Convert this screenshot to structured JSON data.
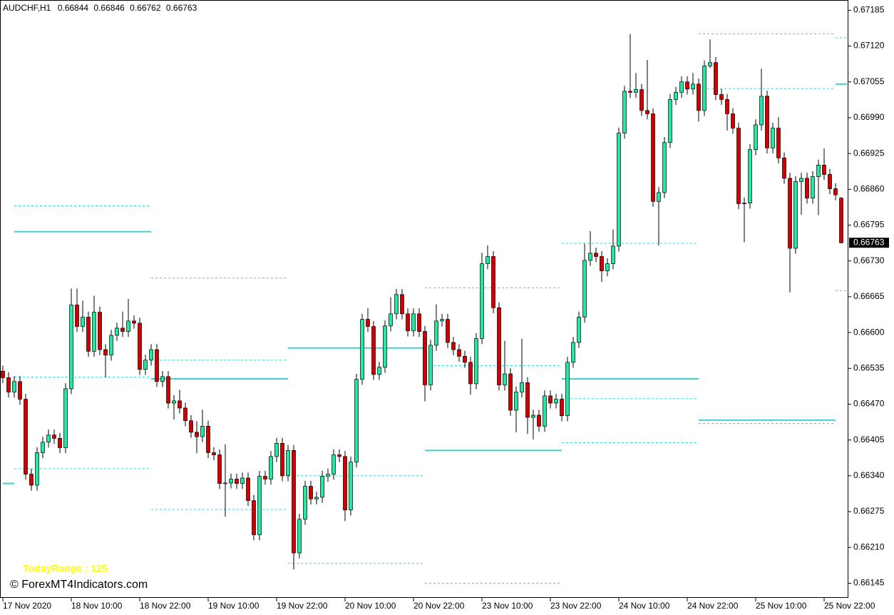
{
  "chart_data": {
    "type": "candlestick",
    "symbol": "AUDCHF,H1",
    "categories": [
      "17 Nov 2020",
      null,
      null,
      null,
      null,
      null,
      null,
      null,
      null,
      null,
      null,
      null,
      "18 Nov 10:00",
      null,
      null,
      null,
      null,
      null,
      null,
      null,
      null,
      null,
      null,
      null,
      "18 Nov 22:00",
      null,
      null,
      null,
      null,
      null,
      null,
      null,
      null,
      null,
      null,
      null,
      "19 Nov 10:00",
      null,
      null,
      null,
      null,
      null,
      null,
      null,
      null,
      null,
      null,
      null,
      "19 Nov 22:00",
      null,
      null,
      null,
      null,
      null,
      null,
      null,
      null,
      null,
      null,
      null,
      "20 Nov 10:00",
      null,
      null,
      null,
      null,
      null,
      null,
      null,
      null,
      null,
      null,
      null,
      "20 Nov 22:00",
      null,
      null,
      null,
      null,
      null,
      null,
      null,
      null,
      null,
      null,
      null,
      "23 Nov 10:00",
      null,
      null,
      null,
      null,
      null,
      null,
      null,
      null,
      null,
      null,
      null,
      "23 Nov 22:00",
      null,
      null,
      null,
      null,
      null,
      null,
      null,
      null,
      null,
      null,
      null,
      "24 Nov 10:00",
      null,
      null,
      null,
      null,
      null,
      null,
      null,
      null,
      null,
      null,
      null,
      "24 Nov 22:00",
      null,
      null,
      null,
      null,
      null,
      null,
      null,
      null,
      null,
      null,
      null,
      "25 Nov 10:00",
      null,
      null,
      null,
      null,
      null,
      null,
      null,
      null,
      null,
      null,
      null,
      "25 Nov 22:00",
      null,
      null,
      null
    ],
    "open": [
      0.6653,
      0.66518,
      0.66492,
      0.66511,
      0.66479,
      0.66343,
      0.66323,
      0.66382,
      0.66401,
      0.66414,
      0.66408,
      0.66391,
      0.66498,
      0.6665,
      0.66611,
      0.66628,
      0.66566,
      0.66637,
      0.66569,
      0.66559,
      0.66595,
      0.66608,
      0.66602,
      0.66621,
      0.66617,
      0.66533,
      0.6655,
      0.66569,
      0.66511,
      0.6652,
      0.66472,
      0.66476,
      0.66463,
      0.6644,
      0.66419,
      0.66411,
      0.6643,
      0.66382,
      0.66378,
      0.66326,
      0.66327,
      0.66334,
      0.66326,
      0.66336,
      0.66295,
      0.66233,
      0.66339,
      0.66334,
      0.66375,
      0.66399,
      0.6634,
      0.66386,
      0.662,
      0.66261,
      0.66321,
      0.66298,
      0.66301,
      0.66339,
      0.66343,
      0.66378,
      0.66375,
      0.66278,
      0.66365,
      0.66515,
      0.66624,
      0.66611,
      0.66524,
      0.66537,
      0.66612,
      0.66634,
      0.66669,
      0.66634,
      0.66603,
      0.66634,
      0.66602,
      0.66505,
      0.66577,
      0.66621,
      0.66624,
      0.66582,
      0.66569,
      0.66557,
      0.66546,
      0.66507,
      0.66589,
      0.66725,
      0.66738,
      0.66645,
      0.66505,
      0.66525,
      0.66459,
      0.66492,
      0.66509,
      0.66446,
      0.6645,
      0.6643,
      0.66485,
      0.66472,
      0.66479,
      0.66449,
      0.66546,
      0.66582,
      0.66628,
      0.66731,
      0.66744,
      0.66738,
      0.66712,
      0.66725,
      0.66757,
      0.66962,
      0.67038,
      0.67036,
      0.67041,
      0.67003,
      0.66997,
      0.66838,
      0.66854,
      0.66945,
      0.67023,
      0.67036,
      0.67055,
      0.67042,
      0.67051,
      0.67003,
      0.67084,
      0.6709,
      0.67032,
      0.67023,
      0.66997,
      0.66971,
      0.66834,
      0.66835,
      0.66932,
      0.66977,
      0.67029,
      0.66935,
      0.66971,
      0.66917,
      0.6688,
      0.66753,
      0.66874,
      0.6688,
      0.66844,
      0.66883,
      0.66904,
      0.66887,
      0.66861,
      0.66844
    ],
    "high": [
      0.6654,
      0.66528,
      0.66521,
      0.66521,
      0.66489,
      0.66353,
      0.66392,
      0.66411,
      0.66424,
      0.66424,
      0.66418,
      0.66508,
      0.6668,
      0.6668,
      0.66658,
      0.66638,
      0.66667,
      0.66647,
      0.66579,
      0.66605,
      0.66618,
      0.66638,
      0.66661,
      0.66631,
      0.66627,
      0.6656,
      0.66579,
      0.66579,
      0.6653,
      0.6653,
      0.66486,
      0.66496,
      0.66473,
      0.6645,
      0.66439,
      0.6646,
      0.6644,
      0.66392,
      0.66388,
      0.66397,
      0.66344,
      0.66344,
      0.66346,
      0.66346,
      0.66305,
      0.66349,
      0.66349,
      0.66385,
      0.66409,
      0.66409,
      0.66396,
      0.66396,
      0.66271,
      0.66331,
      0.66331,
      0.66311,
      0.66349,
      0.66353,
      0.66388,
      0.66388,
      0.66385,
      0.66375,
      0.66525,
      0.66634,
      0.66644,
      0.66621,
      0.66547,
      0.66622,
      0.66664,
      0.66679,
      0.66679,
      0.66644,
      0.66644,
      0.66644,
      0.66612,
      0.66587,
      0.66651,
      0.66634,
      0.66634,
      0.66592,
      0.66579,
      0.66567,
      0.66556,
      0.66599,
      0.66745,
      0.66758,
      0.66748,
      0.66655,
      0.66585,
      0.66535,
      0.66502,
      0.66589,
      0.66519,
      0.6646,
      0.6646,
      0.66495,
      0.66495,
      0.66489,
      0.66489,
      0.66556,
      0.66592,
      0.66638,
      0.66761,
      0.66784,
      0.66754,
      0.66748,
      0.66735,
      0.66787,
      0.66972,
      0.67048,
      0.67142,
      0.67071,
      0.67051,
      0.67095,
      0.67007,
      0.66864,
      0.66955,
      0.67033,
      0.67046,
      0.67065,
      0.67065,
      0.67071,
      0.67061,
      0.67094,
      0.67132,
      0.671,
      0.67042,
      0.67033,
      0.67007,
      0.66981,
      0.66845,
      0.66942,
      0.66987,
      0.67079,
      0.67039,
      0.66981,
      0.66991,
      0.66927,
      0.6689,
      0.66884,
      0.6689,
      0.6689,
      0.66893,
      0.66914,
      0.66934,
      0.66897,
      0.66871,
      0.66846
    ],
    "low": [
      0.66508,
      0.66482,
      0.66482,
      0.66469,
      0.66333,
      0.66313,
      0.66313,
      0.66372,
      0.66391,
      0.66398,
      0.66381,
      0.66381,
      0.66488,
      0.66601,
      0.66601,
      0.66556,
      0.66556,
      0.66559,
      0.66519,
      0.66549,
      0.66585,
      0.66592,
      0.66592,
      0.66607,
      0.66523,
      0.66523,
      0.6654,
      0.66501,
      0.66501,
      0.66462,
      0.66442,
      0.66453,
      0.6643,
      0.66409,
      0.66381,
      0.66401,
      0.66372,
      0.66368,
      0.66316,
      0.66266,
      0.66317,
      0.66316,
      0.66316,
      0.66285,
      0.66223,
      0.66223,
      0.66324,
      0.66324,
      0.66365,
      0.6633,
      0.6633,
      0.6617,
      0.6619,
      0.66251,
      0.66288,
      0.66288,
      0.66291,
      0.66329,
      0.66333,
      0.66365,
      0.66258,
      0.66268,
      0.66355,
      0.66505,
      0.66601,
      0.66514,
      0.66514,
      0.66527,
      0.66602,
      0.66624,
      0.66624,
      0.66593,
      0.66593,
      0.66592,
      0.66475,
      0.66495,
      0.66567,
      0.66611,
      0.66572,
      0.66559,
      0.66547,
      0.66536,
      0.66487,
      0.66497,
      0.66579,
      0.66715,
      0.66635,
      0.66495,
      0.66495,
      0.66449,
      0.66419,
      0.66482,
      0.66416,
      0.66406,
      0.6642,
      0.6642,
      0.66462,
      0.66462,
      0.66439,
      0.66439,
      0.66536,
      0.66572,
      0.66618,
      0.66721,
      0.66728,
      0.66692,
      0.66702,
      0.66715,
      0.66747,
      0.66952,
      0.67026,
      0.67026,
      0.66993,
      0.66987,
      0.66828,
      0.66758,
      0.66844,
      0.66935,
      0.67013,
      0.67026,
      0.67032,
      0.67032,
      0.66983,
      0.66993,
      0.6708,
      0.67022,
      0.67013,
      0.66967,
      0.66961,
      0.66824,
      0.66764,
      0.66825,
      0.66922,
      0.66967,
      0.66925,
      0.66925,
      0.66907,
      0.6687,
      0.66673,
      0.66743,
      0.66814,
      0.66834,
      0.66834,
      0.66813,
      0.66877,
      0.66851,
      0.6684,
      0.66762
    ],
    "close": [
      0.66518,
      0.66492,
      0.66511,
      0.66479,
      0.66343,
      0.66323,
      0.66382,
      0.66401,
      0.66414,
      0.66408,
      0.66391,
      0.66498,
      0.6665,
      0.66611,
      0.66628,
      0.66566,
      0.66637,
      0.66569,
      0.66559,
      0.66595,
      0.66608,
      0.66602,
      0.66621,
      0.66617,
      0.66533,
      0.6655,
      0.66569,
      0.66511,
      0.6652,
      0.66472,
      0.66476,
      0.66463,
      0.6644,
      0.66419,
      0.66411,
      0.6643,
      0.66382,
      0.66378,
      0.66326,
      0.66327,
      0.66334,
      0.66326,
      0.66336,
      0.66295,
      0.66233,
      0.66339,
      0.66334,
      0.66375,
      0.66399,
      0.6634,
      0.66386,
      0.662,
      0.66261,
      0.66321,
      0.66298,
      0.66301,
      0.66339,
      0.66343,
      0.66378,
      0.66375,
      0.66278,
      0.66365,
      0.66515,
      0.66624,
      0.66611,
      0.66524,
      0.66537,
      0.66612,
      0.66634,
      0.66669,
      0.66634,
      0.66603,
      0.66634,
      0.66602,
      0.66505,
      0.66577,
      0.66621,
      0.66624,
      0.66582,
      0.66569,
      0.66557,
      0.66546,
      0.66507,
      0.66589,
      0.66725,
      0.66738,
      0.66645,
      0.66505,
      0.66525,
      0.66459,
      0.66492,
      0.66509,
      0.66446,
      0.6645,
      0.6643,
      0.66485,
      0.66472,
      0.66479,
      0.66449,
      0.66546,
      0.66582,
      0.66628,
      0.66731,
      0.66744,
      0.66738,
      0.66712,
      0.66725,
      0.66757,
      0.66962,
      0.67038,
      0.67036,
      0.67041,
      0.67003,
      0.66997,
      0.66838,
      0.66854,
      0.66945,
      0.67023,
      0.67036,
      0.67055,
      0.67042,
      0.67051,
      0.67003,
      0.67084,
      0.6709,
      0.67032,
      0.67023,
      0.66997,
      0.66971,
      0.66834,
      0.66835,
      0.66932,
      0.66977,
      0.67029,
      0.66935,
      0.66971,
      0.66917,
      0.6688,
      0.66753,
      0.66874,
      0.6688,
      0.66844,
      0.66883,
      0.66904,
      0.66887,
      0.66861,
      0.6685,
      0.66763
    ],
    "up_color": "#26e6a0",
    "down_color": "#d10000",
    "ylim": [
      0.66121,
      0.67201
    ],
    "yticks": [
      0.67185,
      {
        "value": 0.6712,
        "label": "0.67120"
      },
      0.67055,
      {
        "value": 0.6699,
        "label": "0.66990"
      },
      0.66925,
      {
        "value": 0.6686,
        "label": "0.66860"
      },
      0.66795,
      {
        "value": 0.6673,
        "label": "0.66730"
      },
      0.66665,
      {
        "value": 0.666,
        "label": "0.66600"
      },
      0.66535,
      {
        "value": 0.6647,
        "label": "0.66470"
      },
      0.66405,
      {
        "value": 0.6634,
        "label": "0.66340"
      },
      0.66275,
      {
        "value": 0.6621,
        "label": "0.66210"
      },
      0.66145
    ],
    "levels": {
      "color": "#40d0d0",
      "solid": [
        {
          "x": [
            0,
            2
          ],
          "value": 0.66326
        },
        {
          "x": [
            2,
            26
          ],
          "value": 0.66783
        },
        {
          "x": [
            26,
            50
          ],
          "value": 0.66516
        },
        {
          "x": [
            50,
            74
          ],
          "value": 0.66572
        },
        {
          "x": [
            74,
            98
          ],
          "value": 0.66386
        },
        {
          "x": [
            98,
            122
          ],
          "value": 0.66516
        },
        {
          "x": [
            122,
            146
          ],
          "value": 0.66441
        },
        {
          "x": [
            146,
            148
          ],
          "value": 0.67051
        }
      ],
      "dashed": [
        {
          "x": [
            2,
            26
          ],
          "value": 0.6683
        },
        {
          "x": [
            2,
            26
          ],
          "value": 0.66519
        },
        {
          "x": [
            2,
            26
          ],
          "value": 0.66353
        },
        {
          "x": [
            26,
            50
          ],
          "value": 0.66699
        },
        {
          "x": [
            26,
            50
          ],
          "value": 0.6655
        },
        {
          "x": [
            26,
            50
          ],
          "value": 0.66279
        },
        {
          "x": [
            50,
            74
          ],
          "value": 0.6634
        },
        {
          "x": [
            50,
            74
          ],
          "value": 0.66181
        },
        {
          "x": [
            74,
            98
          ],
          "value": 0.66681
        },
        {
          "x": [
            74,
            98
          ],
          "value": 0.6654
        },
        {
          "x": [
            74,
            98
          ],
          "value": 0.66145
        },
        {
          "x": [
            98,
            122
          ],
          "value": 0.66762
        },
        {
          "x": [
            98,
            122
          ],
          "value": 0.6648
        },
        {
          "x": [
            98,
            122
          ],
          "value": 0.664
        },
        {
          "x": [
            122,
            146
          ],
          "value": 0.67142
        },
        {
          "x": [
            122,
            146
          ],
          "value": 0.67043
        },
        {
          "x": [
            122,
            146
          ],
          "value": 0.66435
        },
        {
          "x": [
            146,
            148
          ],
          "value": 0.67135
        },
        {
          "x": [
            146,
            148
          ],
          "value": 0.66676
        }
      ]
    },
    "annotation": "TodayRange : 125",
    "annotation_color": "#ffff00",
    "watermark": "© ForexMT4Indicators.com"
  }
}
